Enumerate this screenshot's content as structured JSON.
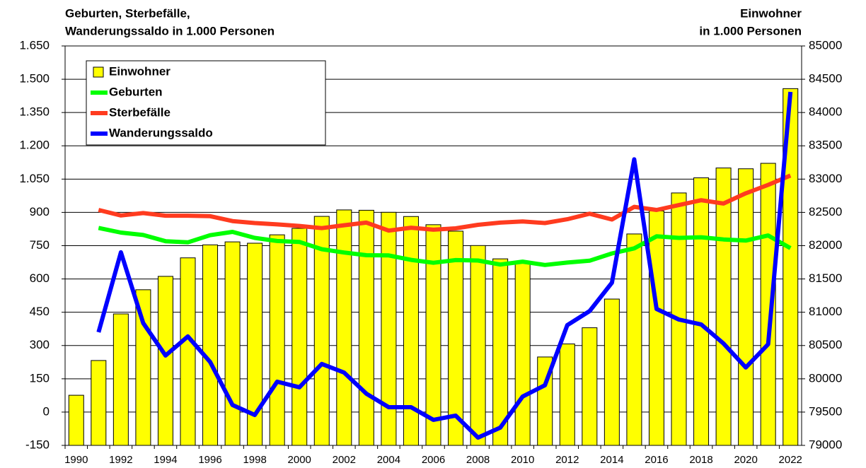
{
  "chart_data": {
    "type": "bar_line",
    "title_left": [
      "Geburten, Sterbefälle,",
      "Wanderungssaldo in 1.000 Personen"
    ],
    "title_right": [
      "Einwohner",
      "in 1.000 Personen"
    ],
    "categories": [
      "1990",
      null,
      "1992",
      null,
      "1994",
      null,
      "1996",
      null,
      "1998",
      null,
      "2000",
      null,
      "2002",
      null,
      "2004",
      null,
      "2006",
      null,
      "2008",
      null,
      "2010",
      null,
      "2012",
      null,
      "2014",
      null,
      "2016",
      null,
      "2018",
      null,
      "2020",
      null,
      "2022"
    ],
    "series": [
      {
        "name": "Einwohner",
        "type": "bar",
        "axis": "y2",
        "color": "#ffff00",
        "values": [
          79753,
          80275,
          80975,
          81338,
          81539,
          81817,
          82012,
          82057,
          82037,
          82163,
          82260,
          82440,
          82537,
          82532,
          82501,
          82438,
          82315,
          82218,
          82002,
          81802,
          81752,
          80328,
          80524,
          80767,
          81198,
          82176,
          82522,
          82792,
          83019,
          83167,
          83155,
          83237,
          84359
        ]
      },
      {
        "name": "Geburten",
        "type": "line",
        "color": "#00ff00",
        "values": [
          null,
          830,
          809,
          798,
          770,
          765,
          797,
          812,
          785,
          771,
          767,
          734,
          719,
          707,
          706,
          686,
          673,
          685,
          683,
          665,
          678,
          663,
          674,
          682,
          715,
          738,
          792,
          785,
          788,
          778,
          773,
          796,
          739
        ]
      },
      {
        "name": "Sterbefälle",
        "type": "line",
        "color": "#ff3b1f",
        "values": [
          null,
          911,
          886,
          897,
          885,
          885,
          883,
          861,
          852,
          846,
          839,
          829,
          842,
          854,
          818,
          831,
          822,
          828,
          844,
          854,
          859,
          852,
          869,
          894,
          868,
          925,
          911,
          933,
          955,
          940,
          986,
          1024,
          1066
        ]
      },
      {
        "name": "Wanderungssaldo",
        "type": "line",
        "color": "#0000ff",
        "values": [
          null,
          360,
          720,
          401,
          255,
          341,
          226,
          32,
          -13,
          137,
          112,
          217,
          178,
          83,
          22,
          22,
          -35,
          -16,
          -115,
          -70,
          70,
          121,
          392,
          455,
          583,
          1139,
          465,
          417,
          395,
          309,
          201,
          306,
          1443
        ]
      }
    ],
    "ylim": [
      -150,
      1650
    ],
    "yticks": [
      -150,
      0,
      150,
      300,
      450,
      600,
      750,
      900,
      {
        "value": 1050,
        "label": "1.050"
      },
      {
        "value": 1200,
        "label": "1.200"
      },
      {
        "value": 1350,
        "label": "1.350"
      },
      {
        "value": 1500,
        "label": "1.500"
      },
      {
        "value": 1650,
        "label": "1.650"
      }
    ],
    "y2lim": [
      79000,
      85000
    ],
    "y2ticks": [
      79000,
      79500,
      80000,
      80500,
      81000,
      81500,
      82000,
      82500,
      83000,
      83500,
      84000,
      84500,
      85000
    ],
    "grid": true,
    "legend": "top-left"
  }
}
